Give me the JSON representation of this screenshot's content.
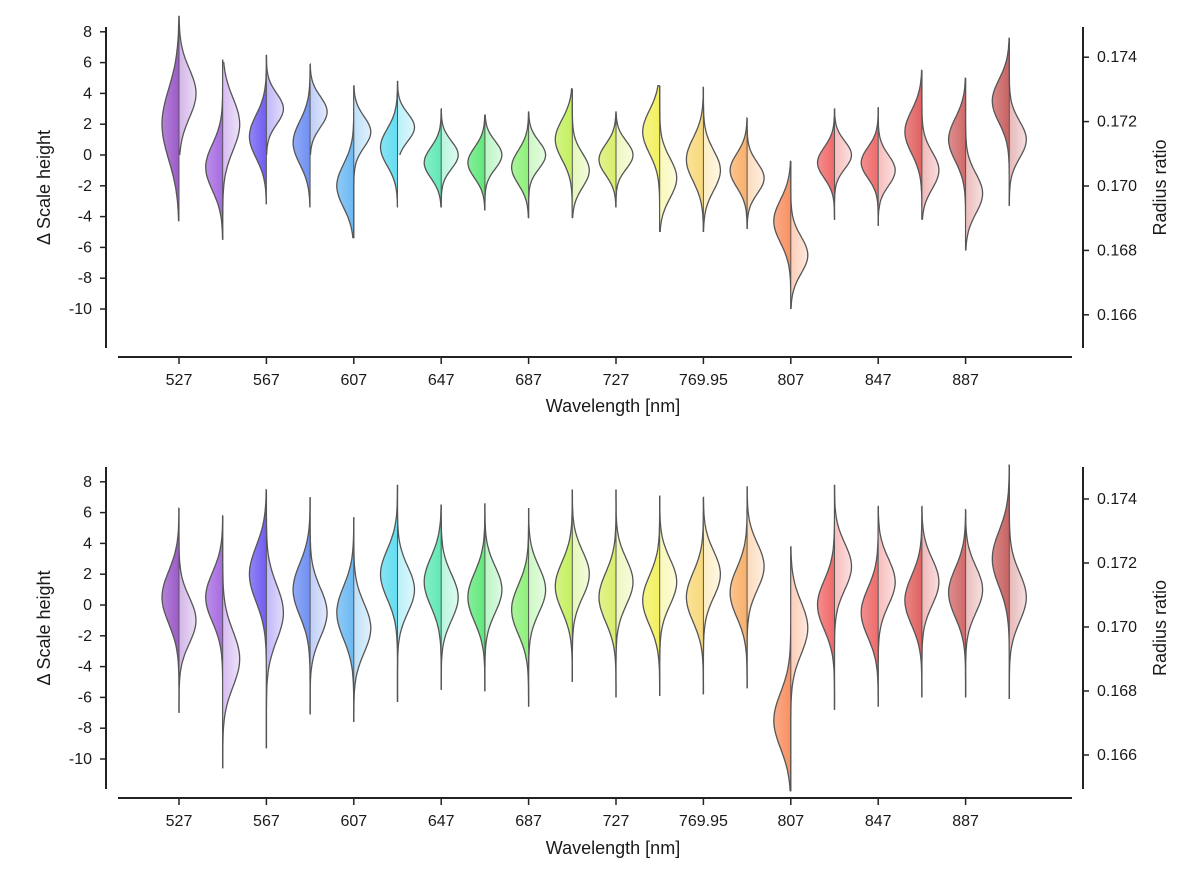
{
  "chart_data": [
    {
      "type": "violin",
      "xlabel": "Wavelength [nm]",
      "ylabel_left": "Δ Scale height",
      "ylabel_right": "Radius ratio",
      "x_tick_labels": [
        "527",
        "567",
        "607",
        "647",
        "687",
        "727",
        "769.95",
        "807",
        "847",
        "887"
      ],
      "y_left_ticks": [
        8,
        6,
        4,
        2,
        0,
        -2,
        -4,
        -6,
        -8,
        -10
      ],
      "y_left_tick_labels": [
        "8",
        "6",
        "4",
        "2",
        "0",
        "-2",
        "-4",
        "-6",
        "-8",
        "-10"
      ],
      "y_right_ticks": [
        0.174,
        0.172,
        0.17,
        0.168,
        0.166
      ],
      "y_right_tick_labels": [
        "0.174",
        "0.172",
        "0.170",
        "0.168",
        "0.166"
      ],
      "ylim_left": [
        -12.4,
        8.3
      ],
      "ylim_right": [
        0.1651,
        0.1749
      ],
      "bins": [
        {
          "color": "#9b59c9",
          "left": {
            "center": 2.0,
            "min": -4.3,
            "max": 9.0,
            "sd": 2.3
          },
          "right": {
            "center": 4.0,
            "min": 0.0,
            "max": 9.0,
            "sd": 1.6
          }
        },
        {
          "color": "#a66be0",
          "left": {
            "center": -0.8,
            "min": -5.5,
            "max": 6.2,
            "sd": 1.5
          },
          "right": {
            "center": 2.0,
            "min": -5.5,
            "max": 6.0,
            "sd": 1.7
          }
        },
        {
          "color": "#6f5cf2",
          "left": {
            "center": 1.2,
            "min": -3.2,
            "max": 6.5,
            "sd": 1.4
          },
          "right": {
            "center": 3.0,
            "min": 0.0,
            "max": 6.5,
            "sd": 1.0
          }
        },
        {
          "color": "#6e8ff2",
          "left": {
            "center": 0.8,
            "min": -3.4,
            "max": 5.9,
            "sd": 1.4
          },
          "right": {
            "center": 2.8,
            "min": 0.0,
            "max": 5.9,
            "sd": 1.0
          }
        },
        {
          "color": "#6bb8f2",
          "left": {
            "center": -2.0,
            "min": -5.4,
            "max": 4.5,
            "sd": 1.4
          },
          "right": {
            "center": 1.5,
            "min": -5.4,
            "max": 4.5,
            "sd": 1.0
          }
        },
        {
          "color": "#62dcf0",
          "left": {
            "center": 0.5,
            "min": -3.4,
            "max": 4.8,
            "sd": 1.2
          },
          "right": {
            "center": 1.8,
            "min": 0.0,
            "max": 4.8,
            "sd": 0.9
          }
        },
        {
          "color": "#5fe8b4",
          "left": {
            "center": -0.5,
            "min": -3.4,
            "max": 3.0,
            "sd": 1.0
          },
          "right": {
            "center": 0.0,
            "min": -3.4,
            "max": 3.0,
            "sd": 0.9
          }
        },
        {
          "color": "#5fe87a",
          "left": {
            "center": -0.5,
            "min": -3.6,
            "max": 2.6,
            "sd": 1.0
          },
          "right": {
            "center": 0.0,
            "min": -3.6,
            "max": 2.6,
            "sd": 0.9
          }
        },
        {
          "color": "#8ef07a",
          "left": {
            "center": -0.8,
            "min": -4.1,
            "max": 2.8,
            "sd": 1.1
          },
          "right": {
            "center": 0.0,
            "min": -4.1,
            "max": 2.8,
            "sd": 0.9
          }
        },
        {
          "color": "#c4f05f",
          "left": {
            "center": 1.0,
            "min": -4.1,
            "max": 4.3,
            "sd": 1.3
          },
          "right": {
            "center": -1.0,
            "min": -4.1,
            "max": 4.3,
            "sd": 1.1
          }
        },
        {
          "color": "#d8ee6a",
          "left": {
            "center": -0.3,
            "min": -3.4,
            "max": 2.8,
            "sd": 1.0
          },
          "right": {
            "center": 0.0,
            "min": -3.4,
            "max": 2.8,
            "sd": 0.9
          }
        },
        {
          "color": "#f2f05f",
          "left": {
            "center": 1.5,
            "min": -5.0,
            "max": 4.5,
            "sd": 1.4
          },
          "right": {
            "center": -1.5,
            "min": -5.0,
            "max": 4.5,
            "sd": 1.3
          }
        },
        {
          "color": "#f8d87a",
          "left": {
            "center": -0.3,
            "min": -5.0,
            "max": 4.4,
            "sd": 1.4
          },
          "right": {
            "center": -1.0,
            "min": -5.0,
            "max": 4.4,
            "sd": 1.3
          }
        },
        {
          "color": "#f8b06a",
          "left": {
            "center": -1.0,
            "min": -4.8,
            "max": 2.4,
            "sd": 1.1
          },
          "right": {
            "center": -1.5,
            "min": -4.8,
            "max": 2.4,
            "sd": 1.0
          }
        },
        {
          "color": "#f89060",
          "left": {
            "center": -4.3,
            "min": -10.0,
            "max": -0.4,
            "sd": 1.4
          },
          "right": {
            "center": -6.5,
            "min": -10.0,
            "max": -0.4,
            "sd": 1.2
          }
        },
        {
          "color": "#f06868",
          "left": {
            "center": -0.5,
            "min": -4.2,
            "max": 3.0,
            "sd": 1.0
          },
          "right": {
            "center": 0.0,
            "min": -4.2,
            "max": 3.0,
            "sd": 0.9
          }
        },
        {
          "color": "#ee6a6a",
          "left": {
            "center": -0.5,
            "min": -4.6,
            "max": 3.1,
            "sd": 1.0
          },
          "right": {
            "center": -1.0,
            "min": -4.6,
            "max": 3.1,
            "sd": 1.0
          }
        },
        {
          "color": "#e06060",
          "left": {
            "center": 1.5,
            "min": -4.2,
            "max": 5.5,
            "sd": 1.4
          },
          "right": {
            "center": -1.0,
            "min": -4.2,
            "max": 5.5,
            "sd": 1.2
          }
        },
        {
          "color": "#d06868",
          "left": {
            "center": 1.0,
            "min": -6.2,
            "max": 5.0,
            "sd": 1.4
          },
          "right": {
            "center": -2.5,
            "min": -6.2,
            "max": 5.0,
            "sd": 1.3
          }
        },
        {
          "color": "#c86262",
          "left": {
            "center": 3.5,
            "min": -3.3,
            "max": 7.6,
            "sd": 1.4
          },
          "right": {
            "center": 1.0,
            "min": -3.3,
            "max": 7.6,
            "sd": 1.2
          }
        }
      ]
    },
    {
      "type": "violin",
      "xlabel": "Wavelength [nm]",
      "ylabel_left": "Δ Scale height",
      "ylabel_right": "Radius ratio",
      "x_tick_labels": [
        "527",
        "567",
        "607",
        "647",
        "687",
        "727",
        "769.95",
        "807",
        "847",
        "887"
      ],
      "y_left_ticks": [
        8,
        6,
        4,
        2,
        0,
        -2,
        -4,
        -6,
        -8,
        -10
      ],
      "y_left_tick_labels": [
        "8",
        "6",
        "4",
        "2",
        "0",
        "-2",
        "-4",
        "-6",
        "-8",
        "-10"
      ],
      "y_right_ticks": [
        0.174,
        0.172,
        0.17,
        0.168,
        0.166
      ],
      "y_right_tick_labels": [
        "0.174",
        "0.172",
        "0.170",
        "0.168",
        "0.166"
      ],
      "ylim_left": [
        -12.4,
        9.1
      ],
      "ylim_right": [
        0.165,
        0.1751
      ],
      "bins": [
        {
          "color": "#9b59c9",
          "left": {
            "center": 0.5,
            "min": -7.0,
            "max": 6.3,
            "sd": 1.7
          },
          "right": {
            "center": -1.0,
            "min": -7.0,
            "max": 6.3,
            "sd": 1.5
          }
        },
        {
          "color": "#a66be0",
          "left": {
            "center": 0.5,
            "min": -10.6,
            "max": 5.8,
            "sd": 1.6
          },
          "right": {
            "center": -3.5,
            "min": -10.6,
            "max": 5.8,
            "sd": 1.8
          }
        },
        {
          "color": "#6f5cf2",
          "left": {
            "center": 2.0,
            "min": -9.3,
            "max": 7.5,
            "sd": 1.8
          },
          "right": {
            "center": -0.5,
            "min": -9.3,
            "max": 7.5,
            "sd": 1.8
          }
        },
        {
          "color": "#6e8ff2",
          "left": {
            "center": 1.0,
            "min": -7.1,
            "max": 7.0,
            "sd": 1.7
          },
          "right": {
            "center": -0.5,
            "min": -7.1,
            "max": 7.0,
            "sd": 1.6
          }
        },
        {
          "color": "#6bb8f2",
          "left": {
            "center": -0.5,
            "min": -7.6,
            "max": 5.7,
            "sd": 1.7
          },
          "right": {
            "center": -1.5,
            "min": -7.6,
            "max": 5.7,
            "sd": 1.6
          }
        },
        {
          "color": "#62dcf0",
          "left": {
            "center": 2.0,
            "min": -6.3,
            "max": 7.8,
            "sd": 1.6
          },
          "right": {
            "center": 1.0,
            "min": -6.3,
            "max": 7.8,
            "sd": 1.5
          }
        },
        {
          "color": "#5fe8b4",
          "left": {
            "center": 1.5,
            "min": -5.5,
            "max": 6.5,
            "sd": 1.6
          },
          "right": {
            "center": 0.5,
            "min": -5.5,
            "max": 6.5,
            "sd": 1.5
          }
        },
        {
          "color": "#5fe87a",
          "left": {
            "center": 0.5,
            "min": -5.6,
            "max": 6.6,
            "sd": 1.6
          },
          "right": {
            "center": 1.0,
            "min": -5.6,
            "max": 6.6,
            "sd": 1.5
          }
        },
        {
          "color": "#8ef07a",
          "left": {
            "center": -0.3,
            "min": -6.6,
            "max": 6.3,
            "sd": 1.6
          },
          "right": {
            "center": 1.0,
            "min": -6.6,
            "max": 6.3,
            "sd": 1.5
          }
        },
        {
          "color": "#c4f05f",
          "left": {
            "center": 1.2,
            "min": -5.0,
            "max": 7.5,
            "sd": 1.6
          },
          "right": {
            "center": 2.0,
            "min": -5.0,
            "max": 7.5,
            "sd": 1.5
          }
        },
        {
          "color": "#d8ee6a",
          "left": {
            "center": 0.5,
            "min": -6.0,
            "max": 7.5,
            "sd": 1.6
          },
          "right": {
            "center": 1.5,
            "min": -6.0,
            "max": 7.5,
            "sd": 1.5
          }
        },
        {
          "color": "#f2f05f",
          "left": {
            "center": 0.3,
            "min": -5.9,
            "max": 7.1,
            "sd": 1.6
          },
          "right": {
            "center": 1.5,
            "min": -5.9,
            "max": 7.1,
            "sd": 1.5
          }
        },
        {
          "color": "#f8d87a",
          "left": {
            "center": 0.5,
            "min": -5.8,
            "max": 7.0,
            "sd": 1.6
          },
          "right": {
            "center": 2.0,
            "min": -5.8,
            "max": 7.0,
            "sd": 1.5
          }
        },
        {
          "color": "#f8b06a",
          "left": {
            "center": 0.8,
            "min": -5.4,
            "max": 7.7,
            "sd": 1.6
          },
          "right": {
            "center": 2.5,
            "min": -5.4,
            "max": 7.7,
            "sd": 1.5
          }
        },
        {
          "color": "#f89060",
          "left": {
            "center": -7.5,
            "min": -12.1,
            "max": 3.8,
            "sd": 1.8
          },
          "right": {
            "center": -1.5,
            "min": -12.1,
            "max": 3.8,
            "sd": 1.7
          }
        },
        {
          "color": "#f06868",
          "left": {
            "center": 0.0,
            "min": -6.8,
            "max": 7.8,
            "sd": 1.6
          },
          "right": {
            "center": 2.5,
            "min": -6.8,
            "max": 7.8,
            "sd": 1.5
          }
        },
        {
          "color": "#ee6a6a",
          "left": {
            "center": -0.5,
            "min": -6.6,
            "max": 6.4,
            "sd": 1.6
          },
          "right": {
            "center": 1.5,
            "min": -6.6,
            "max": 6.4,
            "sd": 1.5
          }
        },
        {
          "color": "#e06060",
          "left": {
            "center": 0.3,
            "min": -6.0,
            "max": 6.4,
            "sd": 1.6
          },
          "right": {
            "center": 1.5,
            "min": -6.0,
            "max": 6.4,
            "sd": 1.5
          }
        },
        {
          "color": "#d06868",
          "left": {
            "center": 0.8,
            "min": -6.0,
            "max": 6.2,
            "sd": 1.6
          },
          "right": {
            "center": 1.0,
            "min": -6.0,
            "max": 6.2,
            "sd": 1.5
          }
        },
        {
          "color": "#c86262",
          "left": {
            "center": 3.0,
            "min": -6.1,
            "max": 9.1,
            "sd": 1.8
          },
          "right": {
            "center": 0.5,
            "min": -6.1,
            "max": 9.1,
            "sd": 1.6
          }
        }
      ]
    }
  ]
}
